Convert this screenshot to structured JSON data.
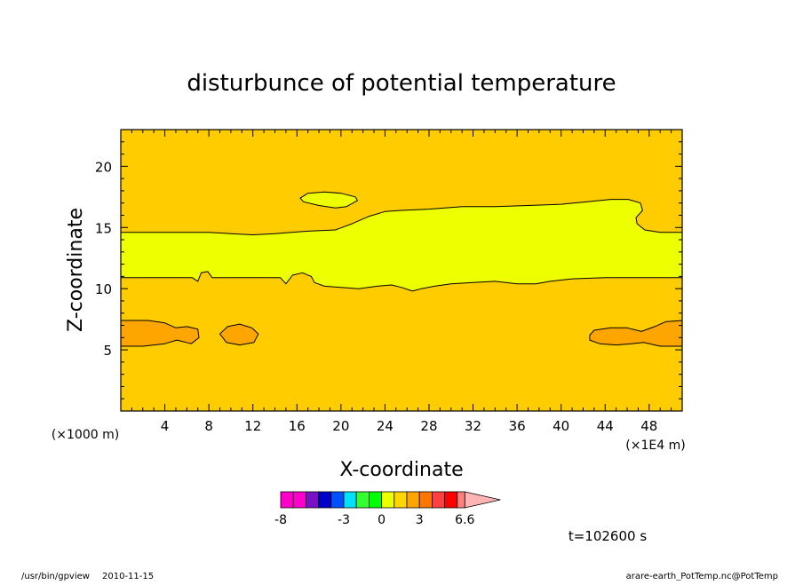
{
  "chart_data": {
    "type": "contour",
    "title": "disturbunce of potential temperature",
    "xlabel": "X-coordinate",
    "ylabel": "Z-coordinate",
    "x_unit": "(×1E4 m)",
    "y_unit": "(×1000 m)",
    "xlim": [
      0,
      51
    ],
    "ylim": [
      0,
      23
    ],
    "x_ticks": [
      4,
      8,
      12,
      16,
      20,
      24,
      28,
      32,
      36,
      40,
      44,
      48
    ],
    "y_ticks": [
      5,
      10,
      15,
      20
    ],
    "levels": [
      -8,
      -7,
      -6,
      -5,
      -4,
      -3,
      -2,
      -1,
      0,
      1,
      2,
      3,
      4,
      5,
      6,
      6.6
    ],
    "colorbar_ticks": [
      "-8",
      "-3",
      "0",
      "3",
      "6.6"
    ],
    "colors": [
      "#ff00cc",
      "#ff00cc",
      "#7a11c6",
      "#0000c8",
      "#0050ff",
      "#00e0ff",
      "#33ff33",
      "#00ff00",
      "#eeff00",
      "#ffd700",
      "#ffa500",
      "#ff7700",
      "#ff4040",
      "#ff0000",
      "#ff7f7f",
      "#ffb4b4"
    ],
    "regions": [
      {
        "name": "background",
        "value": "orange",
        "color": "#ffcc00",
        "points": [
          [
            0,
            0
          ],
          [
            51,
            0
          ],
          [
            51,
            23
          ],
          [
            0,
            23
          ]
        ]
      },
      {
        "name": "mid-band",
        "value": "yellow",
        "color": "#eeff00",
        "points": [
          [
            0,
            10.9
          ],
          [
            6.5,
            10.9
          ],
          [
            7,
            10.6
          ],
          [
            7.3,
            11.3
          ],
          [
            7.9,
            11.4
          ],
          [
            8.3,
            10.9
          ],
          [
            14.5,
            10.9
          ],
          [
            15,
            10.4
          ],
          [
            15.6,
            11.1
          ],
          [
            16.5,
            11.3
          ],
          [
            17.3,
            11.0
          ],
          [
            17.6,
            10.5
          ],
          [
            18.5,
            10.2
          ],
          [
            20,
            10.1
          ],
          [
            21.6,
            10.0
          ],
          [
            23.3,
            10.2
          ],
          [
            24.6,
            10.3
          ],
          [
            25.5,
            10.1
          ],
          [
            26.5,
            9.8
          ],
          [
            27.3,
            10.0
          ],
          [
            28.5,
            10.2
          ],
          [
            30,
            10.4
          ],
          [
            32,
            10.5
          ],
          [
            34,
            10.6
          ],
          [
            36,
            10.4
          ],
          [
            37.7,
            10.4
          ],
          [
            39,
            10.6
          ],
          [
            41,
            10.8
          ],
          [
            44,
            10.9
          ],
          [
            51,
            10.9
          ],
          [
            51,
            14.6
          ],
          [
            49,
            14.6
          ],
          [
            47.6,
            14.8
          ],
          [
            46.9,
            15.3
          ],
          [
            46.8,
            15.8
          ],
          [
            47.4,
            16.4
          ],
          [
            47.2,
            17.0
          ],
          [
            46.1,
            17.3
          ],
          [
            44.5,
            17.3
          ],
          [
            42.4,
            17.1
          ],
          [
            40,
            16.9
          ],
          [
            37,
            16.8
          ],
          [
            34,
            16.7
          ],
          [
            31,
            16.7
          ],
          [
            28,
            16.5
          ],
          [
            25.5,
            16.4
          ],
          [
            24,
            16.3
          ],
          [
            22.5,
            15.9
          ],
          [
            21,
            15.3
          ],
          [
            19.5,
            14.8
          ],
          [
            17,
            14.7
          ],
          [
            15.5,
            14.6
          ],
          [
            14,
            14.5
          ],
          [
            12,
            14.4
          ],
          [
            10,
            14.5
          ],
          [
            8,
            14.6
          ],
          [
            0,
            14.6
          ]
        ]
      },
      {
        "name": "yellow-island",
        "value": "yellow",
        "color": "#eeff00",
        "points": [
          [
            16.3,
            17.4
          ],
          [
            17,
            17.8
          ],
          [
            18.5,
            17.9
          ],
          [
            20,
            17.8
          ],
          [
            21.3,
            17.5
          ],
          [
            21.5,
            17.2
          ],
          [
            20.5,
            16.7
          ],
          [
            19.5,
            16.6
          ],
          [
            18,
            16.8
          ],
          [
            16.6,
            17.1
          ]
        ]
      },
      {
        "name": "orange-blob-left",
        "value": "dark-orange",
        "color": "#ffa500",
        "points": [
          [
            0,
            7.4
          ],
          [
            2.5,
            7.4
          ],
          [
            4,
            7.2
          ],
          [
            5,
            6.8
          ],
          [
            6,
            6.9
          ],
          [
            7,
            6.7
          ],
          [
            7.1,
            6.0
          ],
          [
            6.4,
            5.5
          ],
          [
            5.1,
            5.8
          ],
          [
            4,
            5.5
          ],
          [
            2,
            5.3
          ],
          [
            0,
            5.3
          ]
        ]
      },
      {
        "name": "orange-blob-center",
        "value": "dark-orange",
        "color": "#ffa500",
        "points": [
          [
            9,
            6.3
          ],
          [
            9.7,
            6.9
          ],
          [
            10.8,
            7.1
          ],
          [
            11.9,
            6.8
          ],
          [
            12.5,
            6.3
          ],
          [
            12.1,
            5.6
          ],
          [
            10.8,
            5.4
          ],
          [
            9.6,
            5.6
          ]
        ]
      },
      {
        "name": "orange-blob-right",
        "value": "dark-orange",
        "color": "#ffa500",
        "points": [
          [
            42.6,
            6.2
          ],
          [
            43,
            6.6
          ],
          [
            44.5,
            6.8
          ],
          [
            46,
            6.8
          ],
          [
            47.3,
            6.5
          ],
          [
            48.5,
            6.9
          ],
          [
            49.5,
            7.3
          ],
          [
            51,
            7.4
          ],
          [
            51,
            5.3
          ],
          [
            49,
            5.3
          ],
          [
            47.5,
            5.6
          ],
          [
            46.4,
            5.5
          ],
          [
            45,
            5.4
          ],
          [
            43.5,
            5.5
          ],
          [
            42.6,
            5.8
          ]
        ]
      }
    ]
  },
  "time_label": "t=102600 s",
  "footer_left_path": "/usr/bin/gpview",
  "footer_left_date": "2010-11-15",
  "footer_right": "arare-earth_PotTemp.nc@PotTemp"
}
